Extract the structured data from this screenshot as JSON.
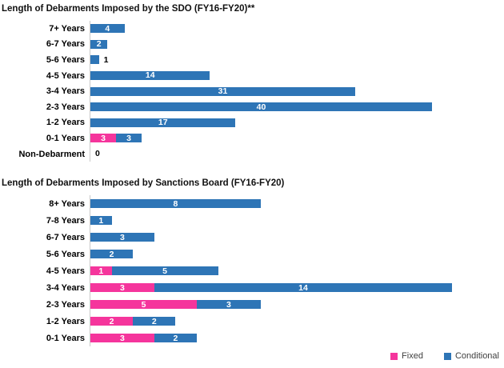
{
  "colors": {
    "fixed": "#F5359C",
    "conditional": "#2E75B6",
    "axis_line": "#C9C9C9",
    "value_label_inside": "#ffffff",
    "value_label_outside": "#000000",
    "legend_text": "#404040"
  },
  "legend": {
    "items": [
      {
        "label": "Fixed",
        "color_key": "fixed"
      },
      {
        "label": "Conditional",
        "color_key": "conditional"
      }
    ],
    "position": "bottom-right"
  },
  "chart_data": [
    {
      "type": "bar",
      "orientation": "horizontal",
      "stacked": true,
      "title": "Length of Debarments Imposed by the SDO (FY16-FY20)**",
      "categories": [
        "7+ Years",
        "6-7 Years",
        "5-6 Years",
        "4-5 Years",
        "3-4 Years",
        "2-3 Years",
        "1-2 Years",
        "0-1 Years",
        "Non-Debarment"
      ],
      "series": [
        {
          "name": "Fixed",
          "values": [
            0,
            0,
            0,
            0,
            0,
            0,
            0,
            3,
            0
          ]
        },
        {
          "name": "Conditional",
          "values": [
            4,
            2,
            1,
            14,
            31,
            40,
            17,
            3,
            0
          ]
        }
      ],
      "xlim": [
        0,
        40
      ],
      "grid": false,
      "value_labels": "inside-center, outside for tiny bars",
      "zero_label": "0"
    },
    {
      "type": "bar",
      "orientation": "horizontal",
      "stacked": true,
      "title": "Length of Debarments Imposed by Sanctions Board (FY16-FY20)",
      "categories": [
        "8+ Years",
        "7-8 Years",
        "6-7 Years",
        "5-6 Years",
        "4-5 Years",
        "3-4 Years",
        "2-3 Years",
        "1-2 Years",
        "0-1 Years"
      ],
      "series": [
        {
          "name": "Fixed",
          "values": [
            0,
            0,
            0,
            0,
            1,
            3,
            5,
            2,
            3
          ]
        },
        {
          "name": "Conditional",
          "values": [
            8,
            1,
            3,
            2,
            5,
            14,
            3,
            2,
            2
          ]
        }
      ],
      "xlim": [
        0,
        17
      ],
      "grid": false,
      "value_labels": "inside-center",
      "zero_label": "0"
    }
  ]
}
